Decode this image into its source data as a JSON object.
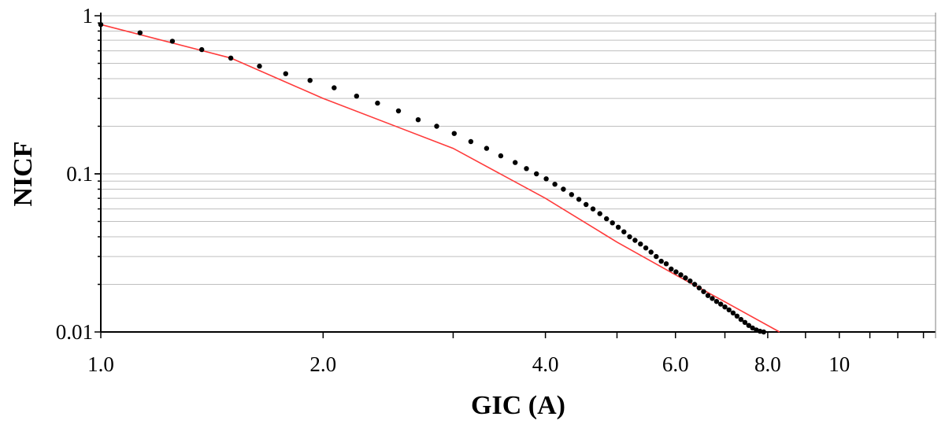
{
  "chart_data": {
    "type": "scatter",
    "title": "",
    "xlabel": "GIC (A)",
    "ylabel": "NICF",
    "x_scale": "log",
    "y_scale": "log",
    "xlim": [
      1.0,
      13.5
    ],
    "ylim": [
      0.01,
      1
    ],
    "x_ticks": [
      {
        "value": 1.0,
        "label": "1.0"
      },
      {
        "value": 2.0,
        "label": "2.0"
      },
      {
        "value": 4.0,
        "label": "4.0"
      },
      {
        "value": 6.0,
        "label": "6.0"
      },
      {
        "value": 8.0,
        "label": "8.0"
      },
      {
        "value": 10,
        "label": "10"
      }
    ],
    "y_ticks": [
      {
        "value": 1,
        "label": "1"
      },
      {
        "value": 0.1,
        "label": "0.1"
      },
      {
        "value": 0.01,
        "label": "0.01"
      }
    ],
    "grid": "horizontal",
    "legend": "none",
    "series": [
      {
        "kind": "points",
        "color": "#000000",
        "x": [
          1.0,
          1.13,
          1.25,
          1.37,
          1.5,
          1.64,
          1.78,
          1.92,
          2.07,
          2.22,
          2.37,
          2.53,
          2.69,
          2.85,
          3.01,
          3.17,
          3.33,
          3.48,
          3.64,
          3.77,
          3.89,
          4.01,
          4.12,
          4.23,
          4.34,
          4.44,
          4.54,
          4.64,
          4.74,
          4.84,
          4.93,
          5.02,
          5.11,
          5.2,
          5.29,
          5.38,
          5.47,
          5.56,
          5.65,
          5.74,
          5.83,
          5.92,
          6.01,
          6.1,
          6.19,
          6.28,
          6.37,
          6.46,
          6.55,
          6.64,
          6.73,
          6.82,
          6.91,
          7.0,
          7.09,
          7.18,
          7.27,
          7.36,
          7.45,
          7.54,
          7.63,
          7.72,
          7.81,
          7.9
        ],
        "y": [
          0.88,
          0.78,
          0.69,
          0.61,
          0.54,
          0.48,
          0.43,
          0.39,
          0.35,
          0.31,
          0.28,
          0.25,
          0.22,
          0.2,
          0.18,
          0.16,
          0.145,
          0.13,
          0.118,
          0.108,
          0.1,
          0.093,
          0.086,
          0.08,
          0.074,
          0.069,
          0.064,
          0.06,
          0.056,
          0.052,
          0.049,
          0.046,
          0.043,
          0.04,
          0.038,
          0.036,
          0.034,
          0.032,
          0.03,
          0.028,
          0.027,
          0.025,
          0.024,
          0.023,
          0.022,
          0.021,
          0.02,
          0.019,
          0.018,
          0.017,
          0.0163,
          0.0156,
          0.015,
          0.0144,
          0.0138,
          0.0132,
          0.0126,
          0.012,
          0.0115,
          0.011,
          0.0106,
          0.0103,
          0.0101,
          0.01
        ]
      },
      {
        "kind": "line",
        "color": "#ff3b3b",
        "x": [
          1.0,
          1.5,
          2.0,
          3.0,
          4.0,
          5.0,
          6.0,
          7.0,
          8.3
        ],
        "y": [
          0.88,
          0.54,
          0.3,
          0.145,
          0.07,
          0.037,
          0.023,
          0.0155,
          0.01
        ]
      }
    ]
  }
}
